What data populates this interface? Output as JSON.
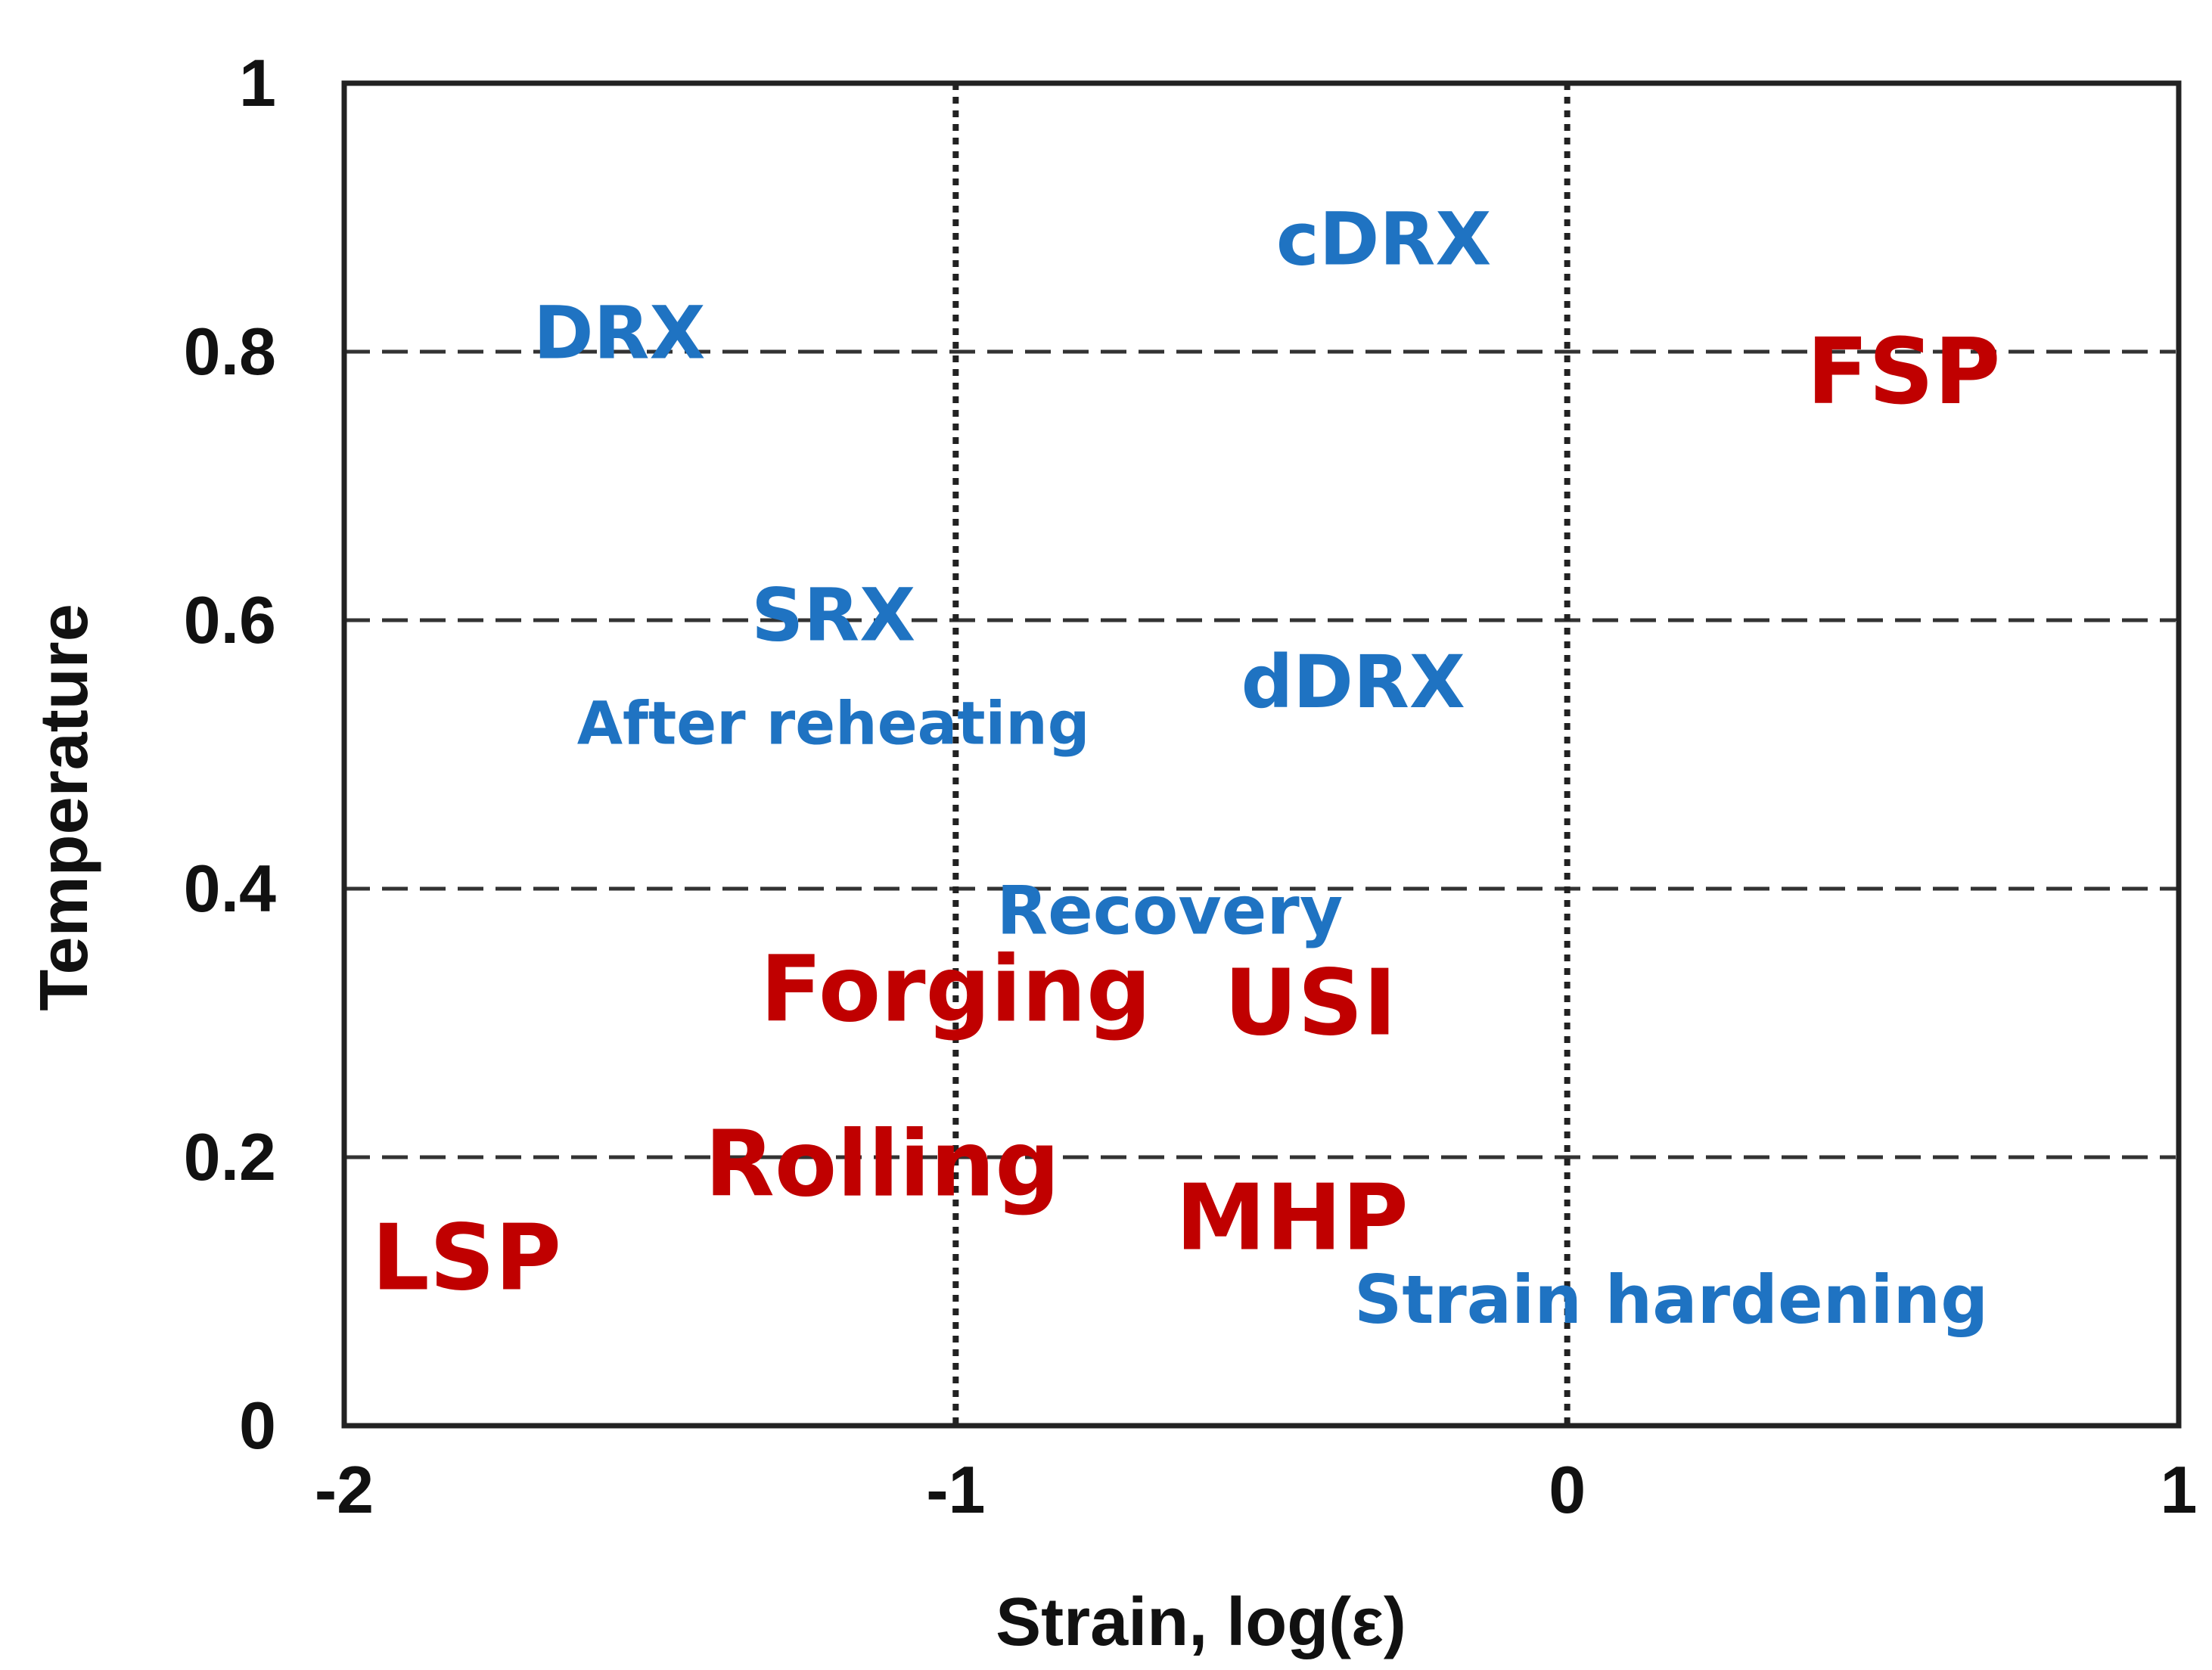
{
  "chart_data": {
    "type": "scatter",
    "title": "",
    "xlabel": "Strain, log(ε)",
    "ylabel": "Temperature",
    "xlim": [
      -2,
      1
    ],
    "ylim": [
      0,
      1
    ],
    "x_ticks": [
      -2,
      -1,
      0,
      1
    ],
    "x_tick_labels": [
      "-2",
      "-1",
      "0",
      "1"
    ],
    "y_ticks": [
      0,
      0.2,
      0.4,
      0.6,
      0.8,
      1
    ],
    "y_tick_labels": [
      "0",
      "0.2",
      "0.4",
      "0.6",
      "0.8",
      "1"
    ],
    "grid": true,
    "grid_x_style": "dotted",
    "grid_y_style": "dashed",
    "mechanism_color": "#1f73c2",
    "process_color": "#c00000",
    "mechanisms": [
      {
        "label": "cDRX",
        "x": -0.3,
        "y": 0.88
      },
      {
        "label": "DRX",
        "x": -1.55,
        "y": 0.81
      },
      {
        "label": "SRX",
        "x": -1.2,
        "y": 0.6
      },
      {
        "label": "dDRX",
        "x": -0.35,
        "y": 0.55
      },
      {
        "label": "After reheating",
        "x": -1.2,
        "y": 0.52
      },
      {
        "label": "Recovery",
        "x": -0.65,
        "y": 0.38
      },
      {
        "label": "Strain hardening",
        "x": 0.17,
        "y": 0.09
      }
    ],
    "processes": [
      {
        "label": "FSP",
        "x": 0.55,
        "y": 0.78
      },
      {
        "label": "Forging",
        "x": -1.0,
        "y": 0.32
      },
      {
        "label": "USI",
        "x": -0.42,
        "y": 0.31
      },
      {
        "label": "Rolling",
        "x": -1.12,
        "y": 0.19
      },
      {
        "label": "MHP",
        "x": -0.45,
        "y": 0.15
      },
      {
        "label": "LSP",
        "x": -1.8,
        "y": 0.12
      }
    ]
  }
}
